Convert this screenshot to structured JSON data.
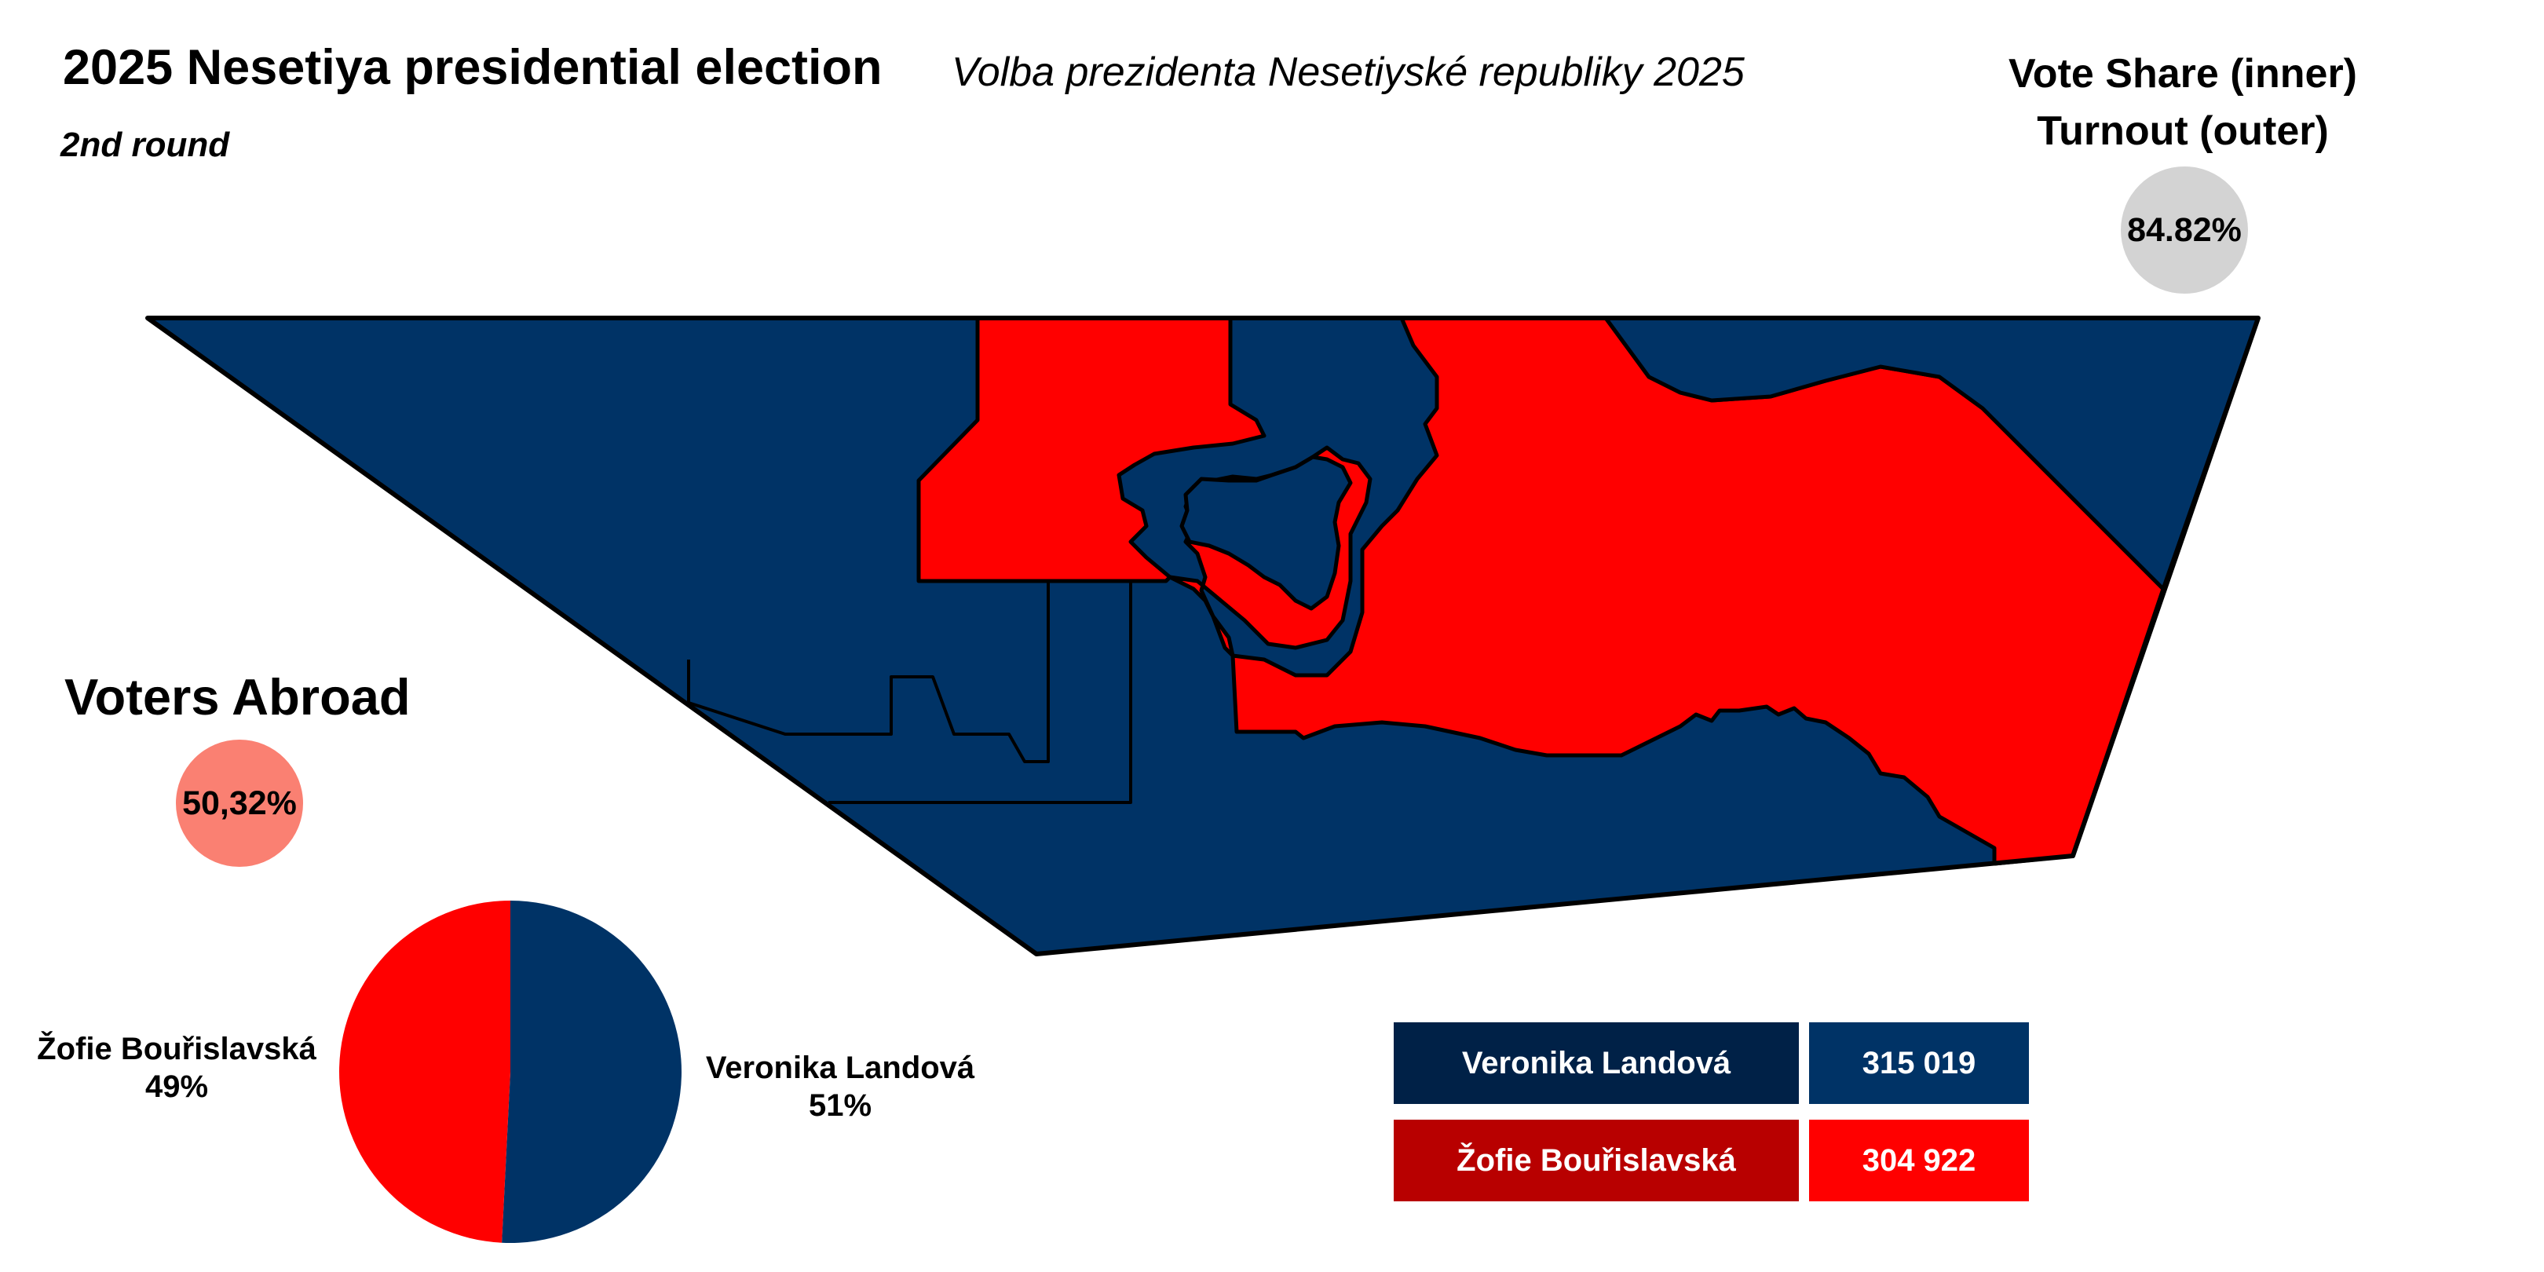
{
  "header": {
    "title": "2025 Nesetiya presidential election",
    "round": "2nd round",
    "native_title": "Volba prezidenta Nesetiyské republiky 2025"
  },
  "legend": {
    "line1": "Vote Share (inner)",
    "line2": "Turnout (outer)",
    "turnout": "84.82%"
  },
  "abroad": {
    "title": "Voters Abroad",
    "value": "50,32%"
  },
  "colors": {
    "landova": "#003366",
    "landova_dark": "#002147",
    "bourislavska": "#ff0000",
    "bourislavska_dark": "#b80000",
    "turnout_circle": "#d3d3d3",
    "abroad_circle": "#fa8072"
  },
  "candidates": [
    {
      "name": "Veronika Landová",
      "votes": "315 019",
      "share": 50.8,
      "share_label": "51%"
    },
    {
      "name": "Žofie Bouřislavská",
      "votes": "304 922",
      "share": 49.2,
      "share_label": "49%"
    }
  ],
  "map": {
    "regions": [
      {
        "id": "west",
        "winner": "landova"
      },
      {
        "id": "north-central",
        "winner": "bourislavska"
      },
      {
        "id": "east",
        "winner": "bourislavska"
      },
      {
        "id": "northeast",
        "winner": "landova"
      },
      {
        "id": "capital",
        "winner": "landova"
      },
      {
        "id": "south",
        "winner": "landova"
      }
    ]
  }
}
